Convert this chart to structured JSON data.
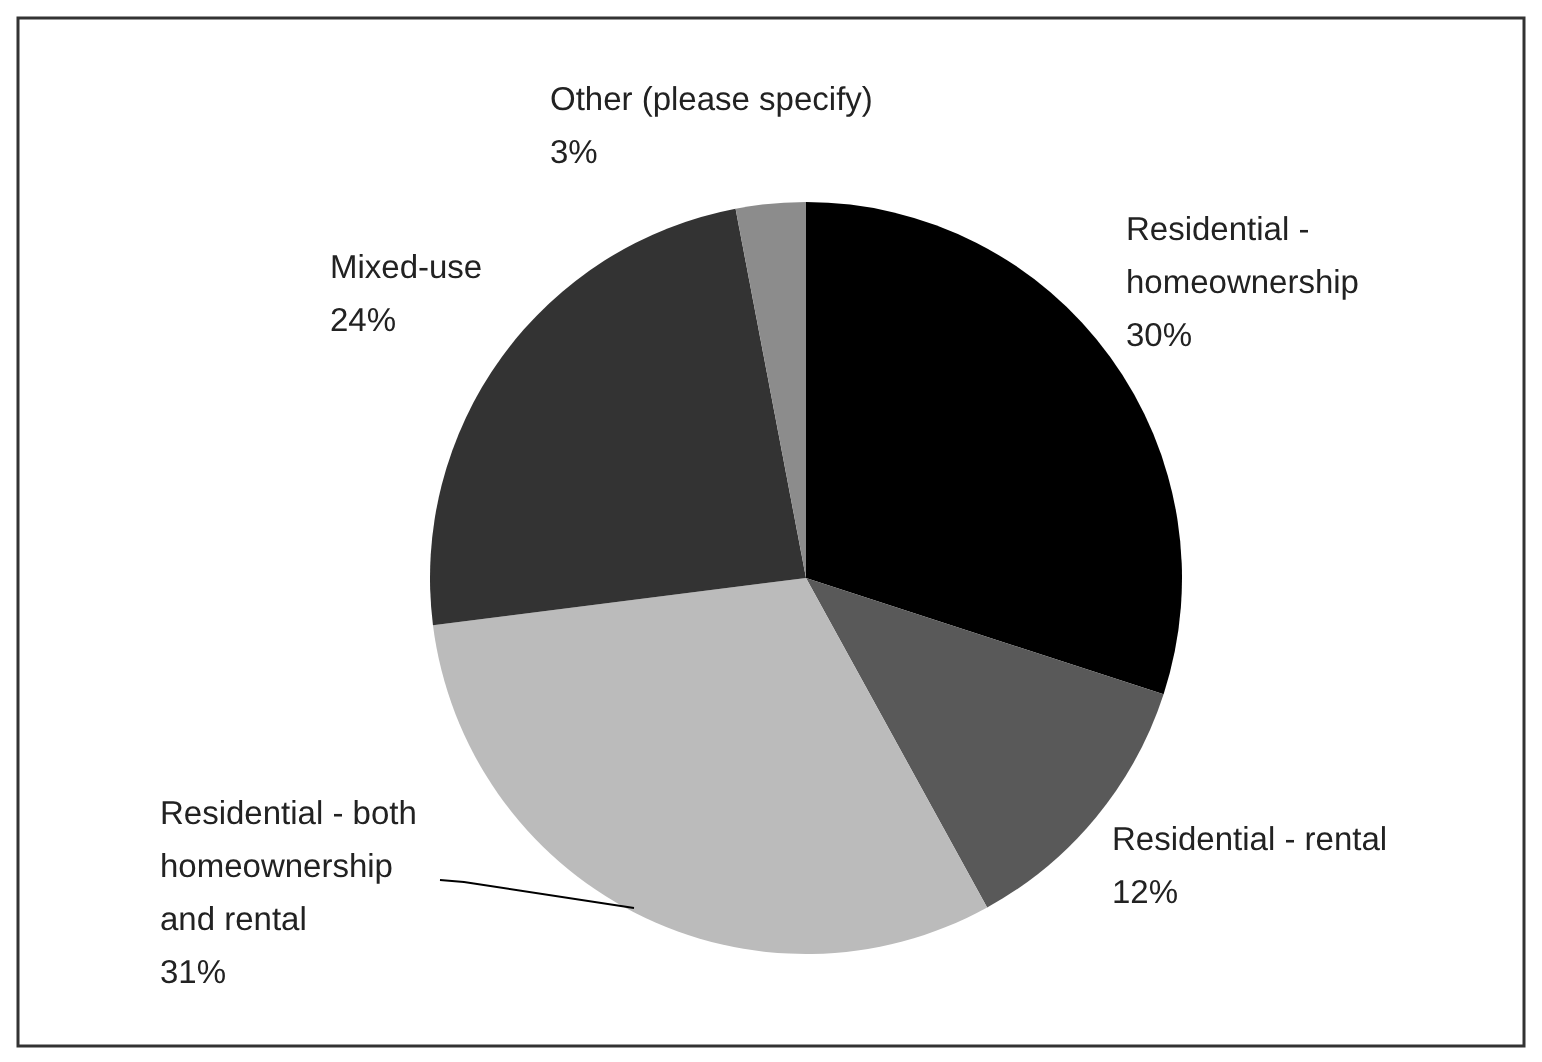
{
  "chart_data": {
    "type": "pie",
    "categories": [
      "Residential - homeownership",
      "Residential - rental",
      "Residential - both homeownership and rental",
      "Mixed-use",
      "Other (please specify)"
    ],
    "values": [
      30,
      12,
      31,
      24,
      3
    ],
    "value_labels": [
      "30%",
      "12%",
      "31%",
      "24%",
      "3%"
    ],
    "colors": [
      "#000000",
      "#595959",
      "#bbbbbb",
      "#333333",
      "#8c8c8c"
    ]
  }
}
